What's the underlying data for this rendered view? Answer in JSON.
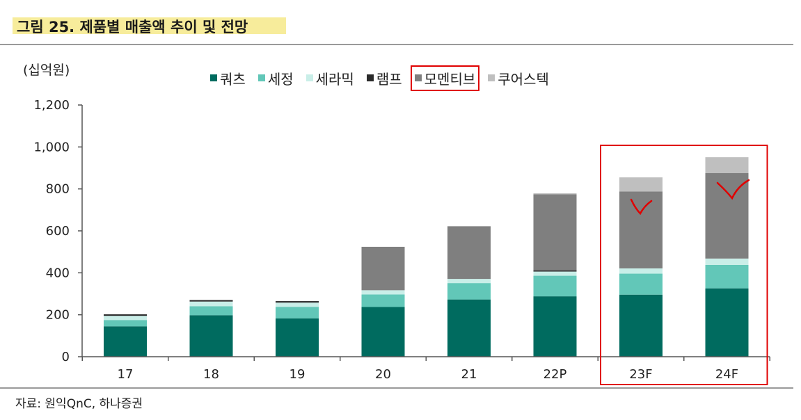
{
  "figure": {
    "title": "그림 25. 제품별 매출액 추이 및 전망",
    "unit": "(십억원)",
    "source": "자료: 원익QnC, 하나증권",
    "colors": {
      "title_highlight": "#f7ec9b",
      "annotation": "#e00000"
    }
  },
  "chart_data": {
    "type": "bar",
    "stacked": true,
    "categories": [
      "17",
      "18",
      "19",
      "20",
      "21",
      "22P",
      "23F",
      "24F"
    ],
    "series": [
      {
        "name": "쿼츠",
        "color": "#006b5f",
        "values": [
          145,
          198,
          183,
          237,
          273,
          288,
          296,
          326
        ]
      },
      {
        "name": "세정",
        "color": "#62c7b8",
        "values": [
          30,
          43,
          55,
          60,
          78,
          98,
          100,
          112
        ]
      },
      {
        "name": "세라믹",
        "color": "#c9eee8",
        "values": [
          20,
          22,
          20,
          20,
          20,
          20,
          25,
          30
        ]
      },
      {
        "name": "램프",
        "color": "#2a2a2a",
        "values": [
          7,
          7,
          7,
          0,
          0,
          5,
          0,
          0
        ]
      },
      {
        "name": "모멘티브",
        "color": "#7f7f7f",
        "values": [
          0,
          0,
          0,
          207,
          251,
          363,
          367,
          408
        ]
      },
      {
        "name": "쿠어스텍",
        "color": "#bfbfbf",
        "values": [
          0,
          0,
          0,
          0,
          0,
          5,
          67,
          75
        ]
      }
    ],
    "y_ticks": [
      "0",
      "200",
      "400",
      "600",
      "800",
      "1,000",
      "1,200"
    ],
    "ylim": [
      0,
      1200
    ],
    "grid": false,
    "legend_position": "top",
    "highlight": {
      "legend_series": "모멘티브",
      "categories": [
        "23F",
        "24F"
      ]
    }
  }
}
